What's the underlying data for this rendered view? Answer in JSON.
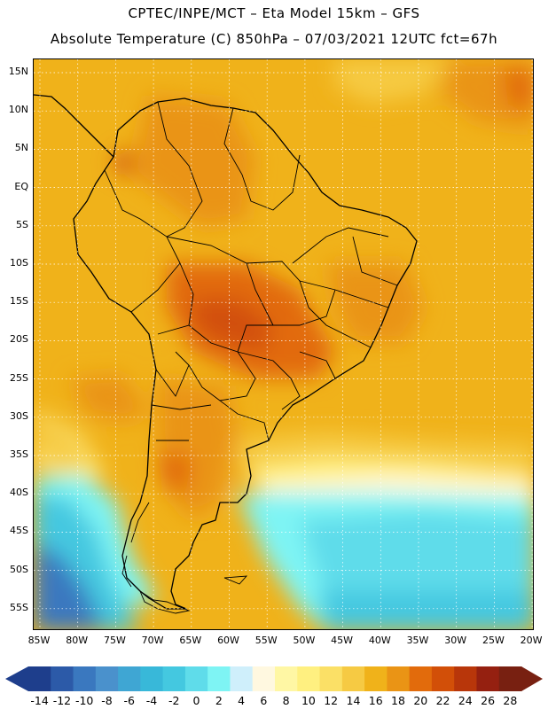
{
  "header": {
    "line1": "CPTEC/INPE/MCT –  Eta Model 15km – GFS",
    "line2": "Absolute Temperature (C) 850hPa – 07/03/2021 12UTC fct=67h"
  },
  "map": {
    "latitudes": [
      "15N",
      "10N",
      "5N",
      "EQ",
      "5S",
      "10S",
      "15S",
      "20S",
      "25S",
      "30S",
      "35S",
      "40S",
      "45S",
      "50S",
      "55S"
    ],
    "longitudes": [
      "85W",
      "80W",
      "75W",
      "70W",
      "65W",
      "60W",
      "55W",
      "50W",
      "45W",
      "40W",
      "35W",
      "30W",
      "25W",
      "20W"
    ],
    "lon_range": [
      -86,
      -19
    ],
    "lat_range": [
      -58,
      17
    ],
    "region": "South America",
    "gridlines": "dotted"
  },
  "colorbar": {
    "labels": [
      "-14",
      "-12",
      "-10",
      "-8",
      "-6",
      "-4",
      "-2",
      "0",
      "2",
      "4",
      "6",
      "8",
      "10",
      "12",
      "14",
      "16",
      "18",
      "20",
      "22",
      "24",
      "26",
      "28"
    ],
    "colors": [
      "#1e3e8c",
      "#2c5aa8",
      "#3a78bf",
      "#4a91cc",
      "#3fa6d3",
      "#38b8d9",
      "#44c8e0",
      "#5fdcea",
      "#7ef4f4",
      "#cfeffb",
      "#fff8e0",
      "#fff7a4",
      "#fff080",
      "#fbe066",
      "#f6ca43",
      "#f0b21a",
      "#ea9415",
      "#e26b0c",
      "#d24f08",
      "#b8360a",
      "#952010",
      "#782011"
    ],
    "extend": "both"
  }
}
